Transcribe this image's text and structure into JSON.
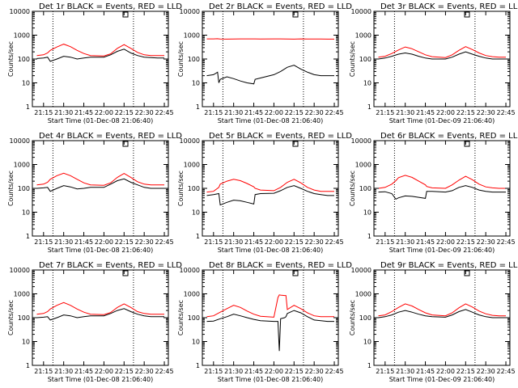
{
  "chart_data": [
    {
      "type": "line",
      "title": "Det 1r BLACK = Events, RED = LLD",
      "ylabel": "Counts/sec",
      "xlabel": "Start Time (01-Dec-08 21:06:40)",
      "x_ticks": [
        "21:15",
        "21:30",
        "21:45",
        "22:00",
        "22:15",
        "22:30",
        "22:45"
      ],
      "y_ticks": [
        "1",
        "10",
        "100",
        "1000",
        "10000"
      ],
      "ylim": [
        1,
        10000
      ],
      "yscale": "log",
      "xlim": [
        "21:06:40",
        "22:48:00"
      ],
      "marker_lines": [
        "21:22",
        "22:22"
      ],
      "x": [
        "21:10",
        "21:15",
        "21:18",
        "21:20",
        "21:25",
        "21:30",
        "21:35",
        "21:40",
        "21:45",
        "21:50",
        "22:00",
        "22:05",
        "22:10",
        "22:15",
        "22:20",
        "22:25",
        "22:30",
        "22:35",
        "22:40",
        "22:45"
      ],
      "series": [
        {
          "name": "BLACK = Events",
          "values": [
            105,
            110,
            120,
            80,
            100,
            130,
            120,
            100,
            110,
            120,
            120,
            150,
            210,
            260,
            180,
            140,
            120,
            115,
            110,
            110
          ]
        },
        {
          "name": "RED = LLD",
          "values": [
            140,
            150,
            180,
            230,
            320,
            420,
            330,
            230,
            170,
            140,
            135,
            165,
            280,
            400,
            280,
            190,
            150,
            140,
            140,
            140
          ]
        }
      ]
    },
    {
      "type": "line",
      "title": "Det 2r BLACK = Events, RED = LLD",
      "ylabel": "Counts/sec",
      "xlabel": "Start Time (01-Dec-08 21:06:40)",
      "x_ticks": [
        "21:15",
        "21:30",
        "21:45",
        "22:00",
        "22:15",
        "22:30",
        "22:45"
      ],
      "y_ticks": [
        "1",
        "10",
        "100",
        "1000",
        "10000"
      ],
      "ylim": [
        1,
        10000
      ],
      "yscale": "log",
      "xlim": [
        "21:06:40",
        "22:48:00"
      ],
      "marker_lines": [
        "21:22",
        "22:22"
      ],
      "x": [
        "21:10",
        "21:15",
        "21:18",
        "21:19",
        "21:20",
        "21:25",
        "21:30",
        "21:35",
        "21:40",
        "21:45",
        "21:46",
        "21:50",
        "22:00",
        "22:05",
        "22:10",
        "22:15",
        "22:20",
        "22:25",
        "22:30",
        "22:35",
        "22:40",
        "22:45"
      ],
      "series": [
        {
          "name": "BLACK = Events",
          "values": [
            20,
            22,
            28,
            10,
            14,
            18,
            15,
            12,
            10,
            9,
            14,
            16,
            22,
            30,
            45,
            55,
            38,
            28,
            22,
            20,
            20,
            20
          ]
        },
        {
          "name": "RED = LLD",
          "values": [
            700,
            700,
            710,
            700,
            690,
            680,
            690,
            700,
            700,
            700,
            700,
            690,
            700,
            700,
            690,
            680,
            700,
            690,
            690,
            690,
            680,
            680
          ]
        }
      ]
    },
    {
      "type": "line",
      "title": "Det 3r BLACK = Events, RED = LLD",
      "ylabel": "Counts/sec",
      "xlabel": "Start Time (01-Dec-09 21:06:40)",
      "x_ticks": [
        "21:15",
        "21:30",
        "21:45",
        "22:00",
        "22:15",
        "22:30",
        "22:45"
      ],
      "y_ticks": [
        "1",
        "10",
        "100",
        "1000",
        "10000"
      ],
      "ylim": [
        1,
        10000
      ],
      "yscale": "log",
      "xlim": [
        "21:06:40",
        "22:48:00"
      ],
      "marker_lines": [
        "21:22",
        "22:22"
      ],
      "x": [
        "21:10",
        "21:15",
        "21:20",
        "21:25",
        "21:30",
        "21:35",
        "21:40",
        "21:45",
        "21:50",
        "22:00",
        "22:05",
        "22:10",
        "22:15",
        "22:20",
        "22:25",
        "22:30",
        "22:35",
        "22:40",
        "22:45"
      ],
      "series": [
        {
          "name": "BLACK = Events",
          "values": [
            100,
            110,
            130,
            160,
            180,
            160,
            130,
            110,
            100,
            100,
            120,
            160,
            200,
            160,
            130,
            110,
            100,
            100,
            100
          ]
        },
        {
          "name": "RED = LLD",
          "values": [
            120,
            130,
            170,
            240,
            320,
            270,
            200,
            150,
            125,
            115,
            150,
            230,
            330,
            250,
            180,
            140,
            125,
            120,
            120
          ]
        }
      ]
    },
    {
      "type": "line",
      "title": "Det 4r BLACK = Events, RED = LLD",
      "ylabel": "Counts/sec",
      "xlabel": "Start Time (01-Dec-08 21:06:40)",
      "x_ticks": [
        "21:15",
        "21:30",
        "21:45",
        "22:00",
        "22:15",
        "22:30",
        "22:45"
      ],
      "y_ticks": [
        "1",
        "10",
        "100",
        "1000",
        "10000"
      ],
      "ylim": [
        1,
        10000
      ],
      "yscale": "log",
      "xlim": [
        "21:06:40",
        "22:48:00"
      ],
      "marker_lines": [
        "21:22",
        "22:22"
      ],
      "x": [
        "21:10",
        "21:15",
        "21:18",
        "21:20",
        "21:25",
        "21:30",
        "21:35",
        "21:40",
        "21:45",
        "21:50",
        "22:00",
        "22:05",
        "22:10",
        "22:15",
        "22:20",
        "22:25",
        "22:30",
        "22:35",
        "22:40",
        "22:45"
      ],
      "series": [
        {
          "name": "BLACK = Events",
          "values": [
            100,
            105,
            110,
            75,
            100,
            130,
            115,
            95,
            100,
            110,
            110,
            150,
            210,
            250,
            180,
            140,
            110,
            100,
            100,
            100
          ]
        },
        {
          "name": "RED = LLD",
          "values": [
            140,
            150,
            180,
            240,
            340,
            430,
            340,
            240,
            170,
            140,
            135,
            170,
            290,
            420,
            290,
            190,
            150,
            140,
            140,
            140
          ]
        }
      ]
    },
    {
      "type": "line",
      "title": "Det 5r BLACK = Events, RED = LLD",
      "ylabel": "Counts/sec",
      "xlabel": "Start Time (01-Dec-08 21:06:40)",
      "x_ticks": [
        "21:15",
        "21:30",
        "21:45",
        "22:00",
        "22:15",
        "22:30",
        "22:45"
      ],
      "y_ticks": [
        "1",
        "10",
        "100",
        "1000",
        "10000"
      ],
      "ylim": [
        1,
        10000
      ],
      "yscale": "log",
      "xlim": [
        "21:06:40",
        "22:48:00"
      ],
      "marker_lines": [
        "21:22",
        "22:22"
      ],
      "x": [
        "21:10",
        "21:15",
        "21:19",
        "21:20",
        "21:25",
        "21:30",
        "21:35",
        "21:40",
        "21:45",
        "21:46",
        "21:50",
        "22:00",
        "22:05",
        "22:10",
        "22:15",
        "22:20",
        "22:25",
        "22:30",
        "22:35",
        "22:40",
        "22:45"
      ],
      "series": [
        {
          "name": "BLACK = Events",
          "values": [
            50,
            55,
            60,
            20,
            26,
            32,
            30,
            26,
            22,
            55,
            60,
            62,
            80,
            110,
            130,
            100,
            75,
            60,
            55,
            50,
            50
          ]
        },
        {
          "name": "RED = LLD",
          "values": [
            70,
            75,
            110,
            150,
            200,
            240,
            210,
            160,
            115,
            100,
            85,
            80,
            110,
            180,
            240,
            170,
            110,
            85,
            75,
            75,
            75
          ]
        }
      ]
    },
    {
      "type": "line",
      "title": "Det 6r BLACK = Events, RED = LLD",
      "ylabel": "Counts/sec",
      "xlabel": "Start Time (01-Dec-09 21:06:40)",
      "x_ticks": [
        "21:15",
        "21:30",
        "21:45",
        "22:00",
        "22:15",
        "22:30",
        "22:45"
      ],
      "y_ticks": [
        "1",
        "10",
        "100",
        "1000",
        "10000"
      ],
      "ylim": [
        1,
        10000
      ],
      "yscale": "log",
      "xlim": [
        "21:06:40",
        "22:48:00"
      ],
      "marker_lines": [
        "21:22",
        "22:22"
      ],
      "x": [
        "21:10",
        "21:15",
        "21:20",
        "21:23",
        "21:25",
        "21:30",
        "21:35",
        "21:40",
        "21:45",
        "21:46",
        "21:50",
        "22:00",
        "22:05",
        "22:10",
        "22:15",
        "22:20",
        "22:25",
        "22:30",
        "22:35",
        "22:40",
        "22:45"
      ],
      "series": [
        {
          "name": "BLACK = Events",
          "values": [
            70,
            72,
            60,
            35,
            40,
            48,
            46,
            42,
            38,
            75,
            75,
            70,
            80,
            110,
            130,
            110,
            85,
            75,
            70,
            70,
            70
          ]
        },
        {
          "name": "RED = LLD",
          "values": [
            100,
            110,
            150,
            210,
            280,
            350,
            290,
            200,
            140,
            120,
            105,
            100,
            140,
            220,
            320,
            230,
            150,
            115,
            105,
            100,
            100
          ]
        }
      ]
    },
    {
      "type": "line",
      "title": "Det 7r BLACK = Events, RED = LLD",
      "ylabel": "Counts/sec",
      "xlabel": "Start Time (01-Dec-08 21:06:40)",
      "x_ticks": [
        "21:15",
        "21:30",
        "21:45",
        "22:00",
        "22:15",
        "22:30",
        "22:45"
      ],
      "y_ticks": [
        "1",
        "10",
        "100",
        "1000",
        "10000"
      ],
      "ylim": [
        1,
        10000
      ],
      "yscale": "log",
      "xlim": [
        "21:06:40",
        "22:48:00"
      ],
      "marker_lines": [
        "21:22",
        "22:22"
      ],
      "x": [
        "21:10",
        "21:15",
        "21:18",
        "21:20",
        "21:25",
        "21:30",
        "21:35",
        "21:40",
        "21:45",
        "21:50",
        "22:00",
        "22:05",
        "22:10",
        "22:15",
        "22:20",
        "22:25",
        "22:30",
        "22:35",
        "22:40",
        "22:45"
      ],
      "series": [
        {
          "name": "BLACK = Events",
          "values": [
            100,
            105,
            110,
            80,
            100,
            130,
            120,
            100,
            110,
            120,
            120,
            150,
            200,
            240,
            180,
            140,
            120,
            110,
            110,
            110
          ]
        },
        {
          "name": "RED = LLD",
          "values": [
            140,
            150,
            180,
            230,
            330,
            430,
            330,
            230,
            170,
            140,
            135,
            165,
            270,
            380,
            270,
            180,
            150,
            140,
            140,
            140
          ]
        }
      ]
    },
    {
      "type": "line",
      "title": "Det 8r BLACK = Events, RED = LLD",
      "ylabel": "Counts/sec",
      "xlabel": "Start Time (01-Dec-08 21:06:40)",
      "x_ticks": [
        "21:15",
        "21:30",
        "21:45",
        "22:00",
        "22:15",
        "22:30",
        "22:45"
      ],
      "y_ticks": [
        "1",
        "10",
        "100",
        "1000",
        "10000"
      ],
      "ylim": [
        1,
        10000
      ],
      "yscale": "log",
      "xlim": [
        "21:06:40",
        "22:48:00"
      ],
      "marker_lines": [
        "21:22",
        "22:22"
      ],
      "x": [
        "21:10",
        "21:15",
        "21:20",
        "21:25",
        "21:30",
        "21:35",
        "21:40",
        "21:45",
        "21:50",
        "22:00",
        "22:03",
        "22:04",
        "22:05",
        "22:08",
        "22:09",
        "22:10",
        "22:15",
        "22:20",
        "22:25",
        "22:30",
        "22:35",
        "22:40",
        "22:45"
      ],
      "series": [
        {
          "name": "BLACK = Events",
          "values": [
            70,
            72,
            90,
            110,
            140,
            120,
            100,
            85,
            75,
            70,
            70,
            4,
            90,
            100,
            110,
            150,
            200,
            160,
            110,
            80,
            75,
            70,
            70
          ]
        },
        {
          "name": "RED = LLD",
          "values": [
            110,
            120,
            170,
            240,
            330,
            270,
            190,
            140,
            115,
            105,
            700,
            900,
            880,
            850,
            850,
            220,
            330,
            240,
            160,
            120,
            110,
            110,
            110
          ]
        }
      ]
    },
    {
      "type": "line",
      "title": "Det 9r BLACK = Events, RED = LLD",
      "ylabel": "Counts/sec",
      "xlabel": "Start Time (01-Dec-09 21:06:40)",
      "x_ticks": [
        "21:15",
        "21:30",
        "21:45",
        "22:00",
        "22:15",
        "22:30",
        "22:45"
      ],
      "y_ticks": [
        "1",
        "10",
        "100",
        "1000",
        "10000"
      ],
      "ylim": [
        1,
        10000
      ],
      "yscale": "log",
      "xlim": [
        "21:06:40",
        "22:48:00"
      ],
      "marker_lines": [
        "21:22",
        "22:22"
      ],
      "x": [
        "21:10",
        "21:15",
        "21:20",
        "21:25",
        "21:30",
        "21:35",
        "21:40",
        "21:45",
        "21:50",
        "22:00",
        "22:05",
        "22:10",
        "22:15",
        "22:20",
        "22:25",
        "22:30",
        "22:35",
        "22:40",
        "22:45"
      ],
      "series": [
        {
          "name": "BLACK = Events",
          "values": [
            100,
            110,
            130,
            170,
            200,
            170,
            140,
            120,
            110,
            105,
            130,
            180,
            220,
            170,
            130,
            110,
            100,
            100,
            100
          ]
        },
        {
          "name": "RED = LLD",
          "values": [
            120,
            130,
            180,
            270,
            380,
            310,
            220,
            160,
            130,
            120,
            160,
            260,
            380,
            280,
            190,
            145,
            125,
            120,
            120
          ]
        }
      ]
    }
  ],
  "colors": {
    "events": "#000000",
    "lld": "#ff0000",
    "background": "#ffffff"
  }
}
